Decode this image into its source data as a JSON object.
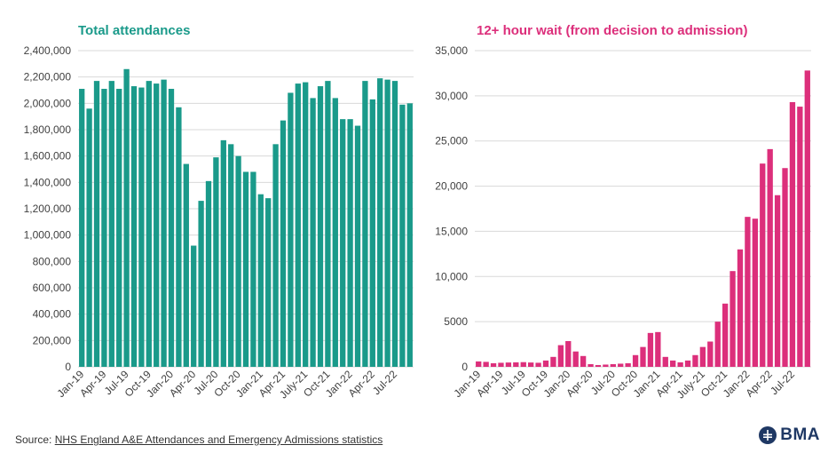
{
  "colors": {
    "left_bar": "#1a9a8a",
    "right_bar": "#dc2f7b",
    "grid": "#d9d9d9",
    "axis_text": "#404040",
    "logo": "#1f3864"
  },
  "source": {
    "prefix": "Source: ",
    "link_text": "NHS England A&E Attendances and Emergency Admissions statistics"
  },
  "logo": {
    "text": "BMA",
    "icon": "bma-logo-icon"
  },
  "chart_data": [
    {
      "type": "bar",
      "title": "Total attendances",
      "xlabel": "",
      "ylabel": "",
      "ylim": [
        0,
        2400000
      ],
      "yticks": [
        0,
        200000,
        400000,
        600000,
        800000,
        1000000,
        1200000,
        1400000,
        1600000,
        1800000,
        2000000,
        2200000,
        2400000
      ],
      "ytick_labels": [
        "0",
        "200,000",
        "400,000",
        "600,000",
        "800,000",
        "1,000,000",
        "1,200,000",
        "1,400,000",
        "1,600,000",
        "1,800,000",
        "2,000,000",
        "2,200,000",
        "2,400,000"
      ],
      "grid": true,
      "categories": [
        "Jan-19",
        "Feb-19",
        "Mar-19",
        "Apr-19",
        "May-19",
        "Jun-19",
        "Jul-19",
        "Aug-19",
        "Sep-19",
        "Oct-19",
        "Nov-19",
        "Dec-19",
        "Jan-20",
        "Feb-20",
        "Mar-20",
        "Apr-20",
        "May-20",
        "Jun-20",
        "Jul-20",
        "Aug-20",
        "Sep-20",
        "Oct-20",
        "Nov-20",
        "Dec-20",
        "Jan-21",
        "Feb-21",
        "Mar-21",
        "Apr-21",
        "May-21",
        "Jun-21",
        "July-21",
        "Aug-21",
        "Sep-21",
        "Oct-21",
        "Nov-21",
        "Dec-21",
        "Jan-22",
        "Feb-22",
        "Mar-22",
        "Apr-22",
        "May-22",
        "Jun-22",
        "Jul-22",
        "Aug-22",
        "Sep-22"
      ],
      "tick_labels": [
        {
          "index": 0,
          "label": "Jan-19"
        },
        {
          "index": 3,
          "label": "Apr-19"
        },
        {
          "index": 6,
          "label": "Jul-19"
        },
        {
          "index": 9,
          "label": "Oct-19"
        },
        {
          "index": 12,
          "label": "Jan-20"
        },
        {
          "index": 15,
          "label": "Apr-20"
        },
        {
          "index": 18,
          "label": "Jul-20"
        },
        {
          "index": 21,
          "label": "Oct-20"
        },
        {
          "index": 24,
          "label": "Jan-21"
        },
        {
          "index": 27,
          "label": "Apr-21"
        },
        {
          "index": 30,
          "label": "July-21"
        },
        {
          "index": 33,
          "label": "Oct-21"
        },
        {
          "index": 36,
          "label": "Jan-22"
        },
        {
          "index": 39,
          "label": "Apr-22"
        },
        {
          "index": 42,
          "label": "Jul-22"
        }
      ],
      "values": [
        2110000,
        1960000,
        2170000,
        2110000,
        2170000,
        2110000,
        2260000,
        2130000,
        2120000,
        2170000,
        2150000,
        2180000,
        2110000,
        1970000,
        1540000,
        920000,
        1260000,
        1410000,
        1590000,
        1720000,
        1690000,
        1600000,
        1480000,
        1480000,
        1310000,
        1280000,
        1690000,
        1870000,
        2080000,
        2150000,
        2160000,
        2040000,
        2130000,
        2170000,
        2040000,
        1880000,
        1880000,
        1830000,
        2170000,
        2030000,
        2190000,
        2180000,
        2170000,
        1990000,
        2000000
      ]
    },
    {
      "type": "bar",
      "title": "12+ hour wait (from decision to admission)",
      "xlabel": "",
      "ylabel": "",
      "ylim": [
        0,
        35000
      ],
      "yticks": [
        0,
        5000,
        10000,
        15000,
        20000,
        25000,
        30000,
        35000
      ],
      "ytick_labels": [
        "0",
        "5000",
        "10,000",
        "15,000",
        "20,000",
        "25,000",
        "30,000",
        "35,000"
      ],
      "grid": true,
      "categories": [
        "Jan-19",
        "Feb-19",
        "Mar-19",
        "Apr-19",
        "May-19",
        "Jun-19",
        "Jul-19",
        "Aug-19",
        "Sep-19",
        "Oct-19",
        "Nov-19",
        "Dec-19",
        "Jan-20",
        "Feb-20",
        "Mar-20",
        "Apr-20",
        "May-20",
        "Jun-20",
        "Jul-20",
        "Aug-20",
        "Sep-20",
        "Oct-20",
        "Nov-20",
        "Dec-20",
        "Jan-21",
        "Feb-21",
        "Mar-21",
        "Apr-21",
        "May-21",
        "Jun-21",
        "July-21",
        "Aug-21",
        "Sep-21",
        "Oct-21",
        "Nov-21",
        "Dec-21",
        "Jan-22",
        "Feb-22",
        "Mar-22",
        "Apr-22",
        "May-22",
        "Jun-22",
        "Jul-22",
        "Aug-22",
        "Sep-22"
      ],
      "tick_labels": [
        {
          "index": 0,
          "label": "Jan-19"
        },
        {
          "index": 3,
          "label": "Apr-19"
        },
        {
          "index": 6,
          "label": "Jul-19"
        },
        {
          "index": 9,
          "label": "Oct-19"
        },
        {
          "index": 12,
          "label": "Jan-20"
        },
        {
          "index": 15,
          "label": "Apr-20"
        },
        {
          "index": 18,
          "label": "Jul-20"
        },
        {
          "index": 21,
          "label": "Oct-20"
        },
        {
          "index": 24,
          "label": "Jan-21"
        },
        {
          "index": 27,
          "label": "Apr-21"
        },
        {
          "index": 30,
          "label": "July-21"
        },
        {
          "index": 33,
          "label": "Oct-21"
        },
        {
          "index": 36,
          "label": "Jan-22"
        },
        {
          "index": 39,
          "label": "Apr-22"
        },
        {
          "index": 42,
          "label": "Jul-22"
        }
      ],
      "values": [
        600,
        550,
        400,
        450,
        480,
        500,
        520,
        480,
        450,
        700,
        1100,
        2400,
        2850,
        1700,
        1200,
        300,
        200,
        250,
        300,
        350,
        400,
        1300,
        2200,
        3750,
        3850,
        1100,
        700,
        500,
        700,
        1300,
        2200,
        2800,
        5000,
        7000,
        10600,
        13000,
        16600,
        16400,
        22500,
        24100,
        19000,
        22000,
        29300,
        28800,
        32800
      ]
    }
  ]
}
